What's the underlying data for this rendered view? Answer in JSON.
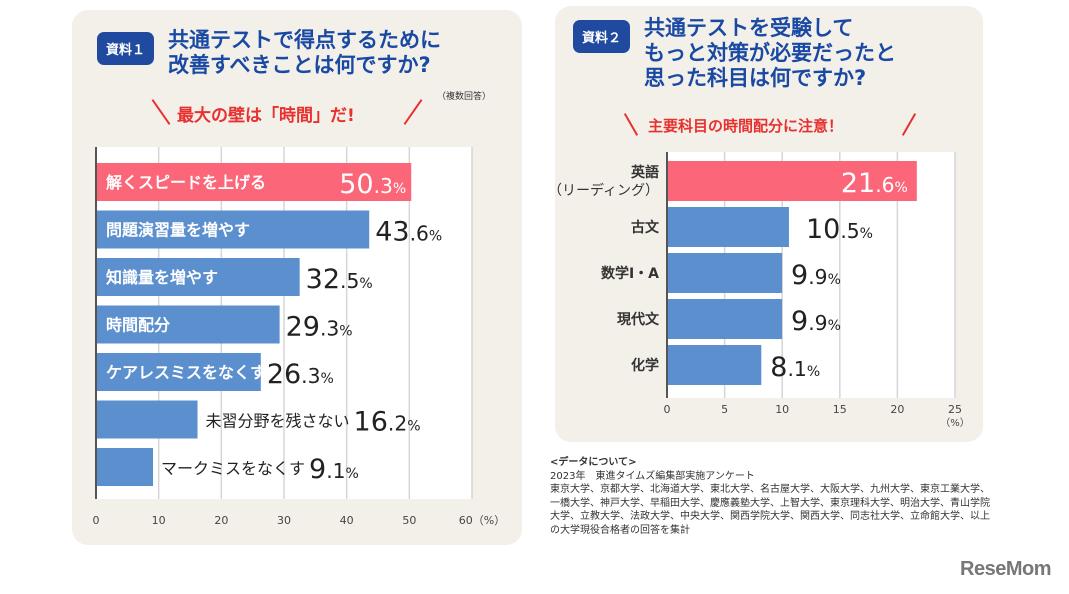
{
  "chart_data": [
    {
      "type": "bar",
      "orientation": "horizontal",
      "badge": "資料１",
      "title": "共通テストで得点するために\n改善すべきことは何ですか?",
      "note": "（複数回答）",
      "subtitle": "最大の壁は「時間」だ!",
      "categories": [
        "解くスピードを上げる",
        "問題演習量を増やす",
        "知識量を増やす",
        "時間配分",
        "ケアレスミスをなくす",
        "未習分野を残さない",
        "マークミスをなくす"
      ],
      "values": [
        50.3,
        43.6,
        32.5,
        29.3,
        26.3,
        16.2,
        9.1
      ],
      "highlight_index": 0,
      "label_position": [
        "inside",
        "inside",
        "inside",
        "inside",
        "inside",
        "outside",
        "outside"
      ],
      "xlim": [
        0,
        60
      ],
      "xticks": [
        "0",
        "10",
        "20",
        "30",
        "40",
        "50",
        "60（%）"
      ],
      "xlabel": "%",
      "grid": true,
      "colors": {
        "highlight": "#fb6679",
        "normal": "#5b8fce"
      }
    },
    {
      "type": "bar",
      "orientation": "horizontal",
      "badge": "資料２",
      "title": "共通テストを受験して\nもっと対策が必要だったと\n思った科目は何ですか?",
      "subtitle": "主要科目の時間配分に注意！",
      "categories": [
        "英語\n（リーディング）",
        "古文",
        "数学I・A",
        "現代文",
        "化学"
      ],
      "values": [
        21.6,
        10.5,
        9.9,
        9.9,
        8.1
      ],
      "highlight_index": 0,
      "xlim": [
        0,
        25
      ],
      "xticks": [
        "0",
        "5",
        "10",
        "15",
        "20",
        "25"
      ],
      "xunit": "（%）",
      "grid": true,
      "colors": {
        "highlight": "#fb6679",
        "normal": "#5b8fce"
      }
    }
  ],
  "footer": {
    "heading": "<データについて>",
    "line1": "2023年　東進タイムズ編集部実施アンケート",
    "body": "東京大学、京都大学、北海道大学、東北大学、名古屋大学、大阪大学、九州大学、東京工業大学、一橋大学、神戸大学、早稲田大学、慶應義塾大学、上智大学、東京理科大学、明治大学、青山学院大学、立教大学、法政大学、中央大学、関西学院大学、関西大学、同志社大学、立命館大学、以上の大学現役合格者の回答を集計"
  },
  "logo": "ReseMom"
}
